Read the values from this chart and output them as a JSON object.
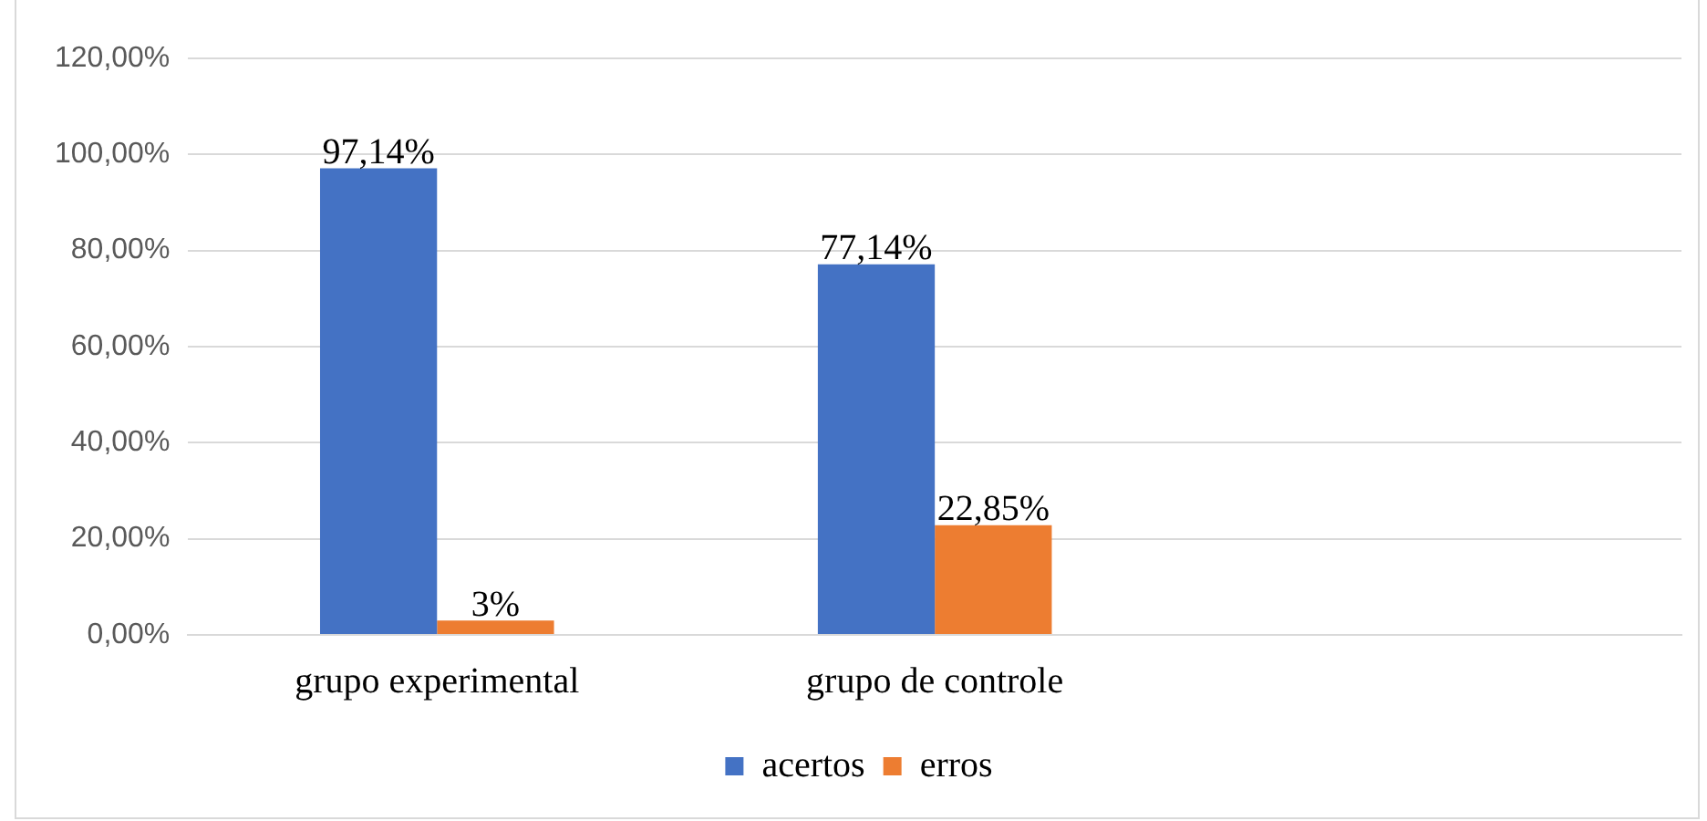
{
  "chart_data": {
    "type": "bar",
    "categories": [
      "grupo experimental",
      "grupo de controle",
      null
    ],
    "series": [
      {
        "name": "acertos",
        "color": "#4472c4",
        "values": [
          97.14,
          77.14,
          null
        ],
        "value_labels": [
          "97,14%",
          "77,14%",
          null
        ]
      },
      {
        "name": "erros",
        "color": "#ed7d31",
        "values": [
          3,
          22.85,
          null
        ],
        "value_labels": [
          "3%",
          "22,85%",
          null
        ]
      }
    ],
    "ylim": [
      0,
      120
    ],
    "yticks": [
      {
        "value": 0,
        "label": "0,00%"
      },
      {
        "value": 20,
        "label": "20,00%"
      },
      {
        "value": 40,
        "label": "40,00%"
      },
      {
        "value": 60,
        "label": "60,00%"
      },
      {
        "value": 80,
        "label": "80,00%"
      },
      {
        "value": 100,
        "label": "100,00%"
      },
      {
        "value": 120,
        "label": "120,00%"
      }
    ],
    "grid": "y",
    "legend": "bottom"
  }
}
